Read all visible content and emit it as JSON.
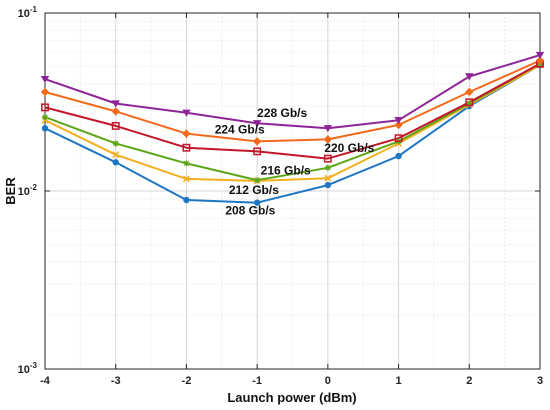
{
  "chart_data": {
    "type": "line",
    "xlabel": "Launch power (dBm)",
    "ylabel": "BER",
    "xlim": [
      -4,
      3
    ],
    "ylim": [
      0.001,
      0.1
    ],
    "yscale": "log",
    "grid": true,
    "x": [
      -4,
      -3,
      -2,
      -1,
      0,
      1,
      2,
      3
    ],
    "x_tick_labels": [
      "-4",
      "-3",
      "-2",
      "-1",
      "0",
      "1",
      "2",
      "3"
    ],
    "y_ticks": [
      {
        "value": 0.1,
        "base": "10",
        "exp": "-1"
      },
      {
        "value": 0.01,
        "base": "10",
        "exp": "-2"
      },
      {
        "value": 0.001,
        "base": "10",
        "exp": "-3"
      }
    ],
    "series": [
      {
        "name": "208 Gb/s",
        "color": "#1f77c4",
        "marker": "circle",
        "values": [
          0.0225,
          0.0145,
          0.0089,
          0.0086,
          0.0108,
          0.0157,
          0.03,
          0.051
        ]
      },
      {
        "name": "212 Gb/s",
        "color": "#f2b01e",
        "marker": "x",
        "values": [
          0.025,
          0.016,
          0.0117,
          0.0114,
          0.0118,
          0.0185,
          0.0305,
          0.051
        ]
      },
      {
        "name": "216 Gb/s",
        "color": "#5ca617",
        "marker": "star",
        "values": [
          0.026,
          0.0185,
          0.0143,
          0.0115,
          0.0135,
          0.019,
          0.031,
          0.052
        ]
      },
      {
        "name": "220 Gb/s",
        "color": "#c4162a",
        "marker": "square",
        "values": [
          0.0295,
          0.0232,
          0.0175,
          0.0167,
          0.0152,
          0.0198,
          0.0315,
          0.052
        ]
      },
      {
        "name": "224 Gb/s",
        "color": "#f26a1b",
        "marker": "diamond",
        "values": [
          0.036,
          0.028,
          0.021,
          0.019,
          0.0195,
          0.0235,
          0.036,
          0.054
        ]
      },
      {
        "name": "228 Gb/s",
        "color": "#8e2596",
        "marker": "triangle-down",
        "values": [
          0.0425,
          0.031,
          0.0275,
          0.024,
          0.0225,
          0.025,
          0.044,
          0.058
        ]
      }
    ],
    "annotations": [
      {
        "text": "208 Gb/s",
        "x": -1.45,
        "y": 0.0074
      },
      {
        "text": "212 Gb/s",
        "x": -1.4,
        "y": 0.0096
      },
      {
        "text": "216 Gb/s",
        "x": -0.95,
        "y": 0.0124
      },
      {
        "text": "220 Gb/s",
        "x": -0.05,
        "y": 0.0166
      },
      {
        "text": "224 Gb/s",
        "x": -1.6,
        "y": 0.0211
      },
      {
        "text": "228 Gb/s",
        "x": -1.0,
        "y": 0.0261
      }
    ]
  }
}
